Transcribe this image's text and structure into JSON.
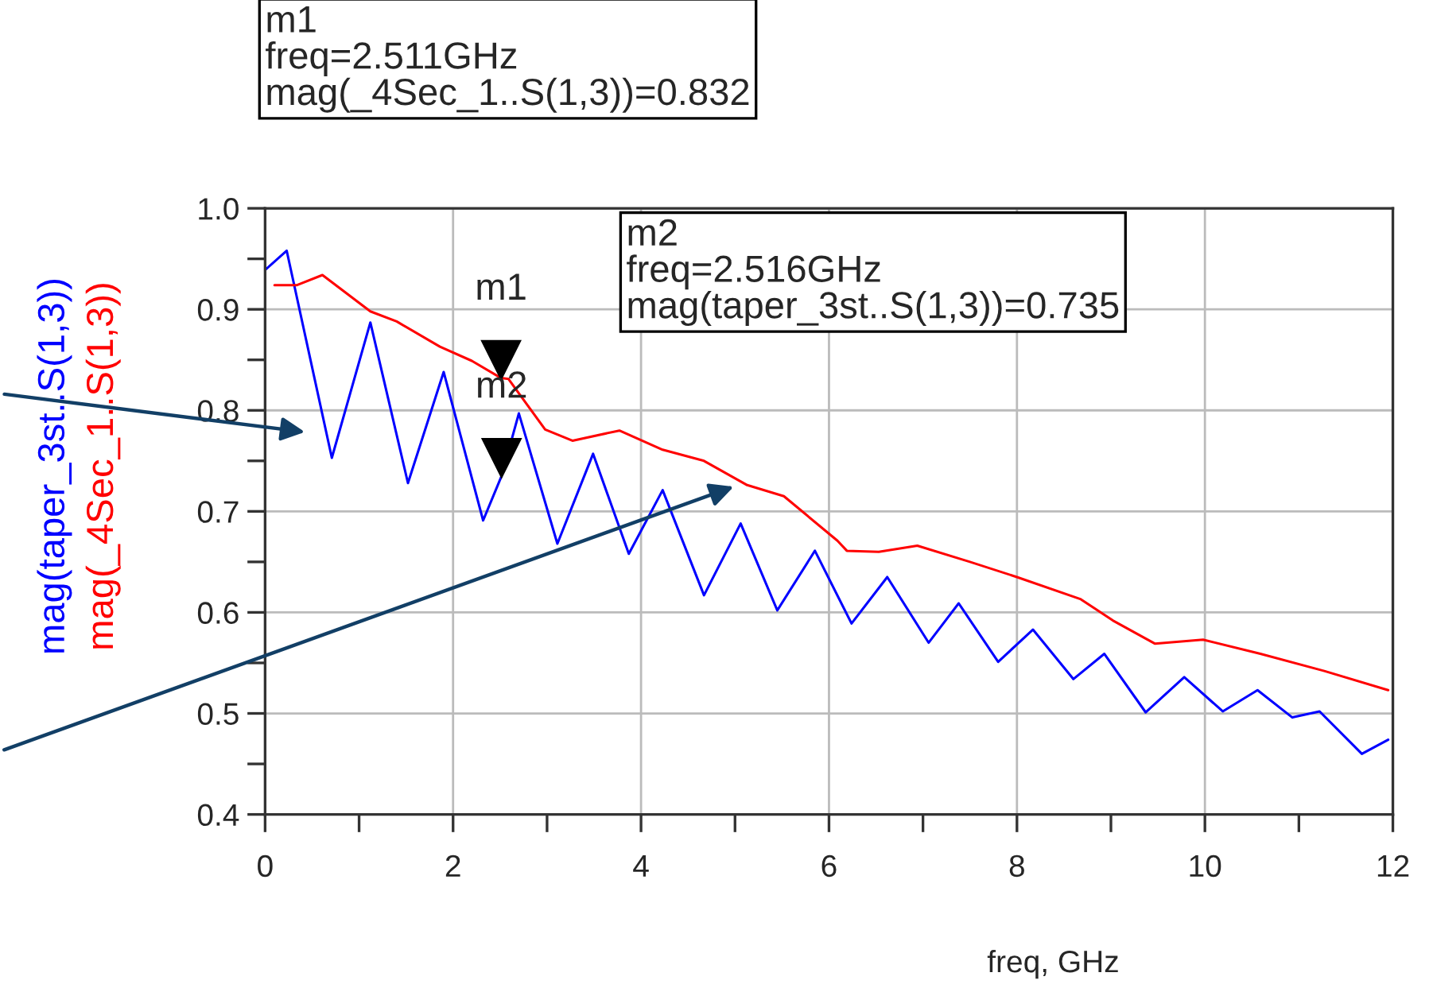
{
  "chart_data": {
    "type": "line",
    "xlabel": "freq, GHz",
    "xlim": [
      0,
      12
    ],
    "xticks": [
      0,
      {
        "value": 1,
        "label": null
      },
      2,
      {
        "value": 3,
        "label": null
      },
      4,
      {
        "value": 5,
        "label": null
      },
      6,
      {
        "value": 7,
        "label": null
      },
      8,
      {
        "value": 9,
        "label": null
      },
      10,
      {
        "value": 11,
        "label": null
      },
      12
    ],
    "ylim": [
      0.4,
      1.0
    ],
    "yticks": [
      0.4,
      {
        "value": 0.45,
        "label": null
      },
      0.5,
      {
        "value": 0.55,
        "label": null
      },
      0.6,
      {
        "value": 0.65,
        "label": null
      },
      0.7,
      {
        "value": 0.75,
        "label": null
      },
      0.8,
      {
        "value": 0.85,
        "label": null
      },
      0.9,
      {
        "value": 0.95,
        "label": null
      },
      {
        "value": 1.0,
        "label": "1.0"
      }
    ],
    "grid": true,
    "legend": false,
    "marker": "none",
    "line_style": "solid",
    "series": [
      {
        "name": "mag(taper_3st..S(1,3))",
        "color": "#0000ff",
        "x": [
          0,
          0.23,
          0.71,
          1.12,
          1.52,
          1.9,
          2.32,
          2.516,
          2.7,
          3.11,
          3.49,
          3.87,
          4.23,
          4.67,
          5.06,
          5.45,
          5.85,
          6.24,
          6.62,
          7.06,
          7.38,
          7.8,
          8.17,
          8.6,
          8.93,
          9.37,
          9.78,
          10.19,
          10.56,
          10.93,
          11.22,
          11.67,
          11.95
        ],
        "values": [
          0.939,
          0.958,
          0.753,
          0.887,
          0.728,
          0.838,
          0.691,
          0.735,
          0.797,
          0.668,
          0.757,
          0.658,
          0.721,
          0.617,
          0.688,
          0.602,
          0.661,
          0.589,
          0.635,
          0.57,
          0.609,
          0.551,
          0.583,
          0.534,
          0.559,
          0.501,
          0.536,
          0.502,
          0.523,
          0.496,
          0.502,
          0.46,
          0.474
        ]
      },
      {
        "name": "mag(_4Sec_1..S(1,3))",
        "color": "#ff0000",
        "x": [
          0.1,
          0.34,
          0.61,
          1.12,
          1.4,
          1.86,
          2.2,
          2.511,
          2.59,
          2.98,
          3.27,
          3.77,
          4.23,
          4.67,
          5.13,
          5.52,
          6.09,
          6.19,
          6.53,
          6.94,
          7.5,
          8.0,
          8.68,
          9.02,
          9.47,
          9.98,
          10.59,
          11.27,
          11.95
        ],
        "values": [
          0.924,
          0.924,
          0.934,
          0.898,
          0.888,
          0.863,
          0.849,
          0.832,
          0.831,
          0.781,
          0.77,
          0.78,
          0.761,
          0.75,
          0.726,
          0.715,
          0.671,
          0.661,
          0.66,
          0.666,
          0.65,
          0.635,
          0.613,
          0.592,
          0.569,
          0.573,
          0.559,
          0.542,
          0.523
        ]
      }
    ],
    "annotations": [
      {
        "text": "m1",
        "x": 2.511,
        "y": 0.832
      },
      {
        "text": "m2",
        "x": 2.516,
        "y": 0.735
      },
      "m1\nfreq=2.511GHz\nmag(_4Sec_1..S(1,3))=0.832",
      "m2\nfreq=2.516GHz\nmag(taper_3st..S(1,3))=0.735"
    ]
  }
}
